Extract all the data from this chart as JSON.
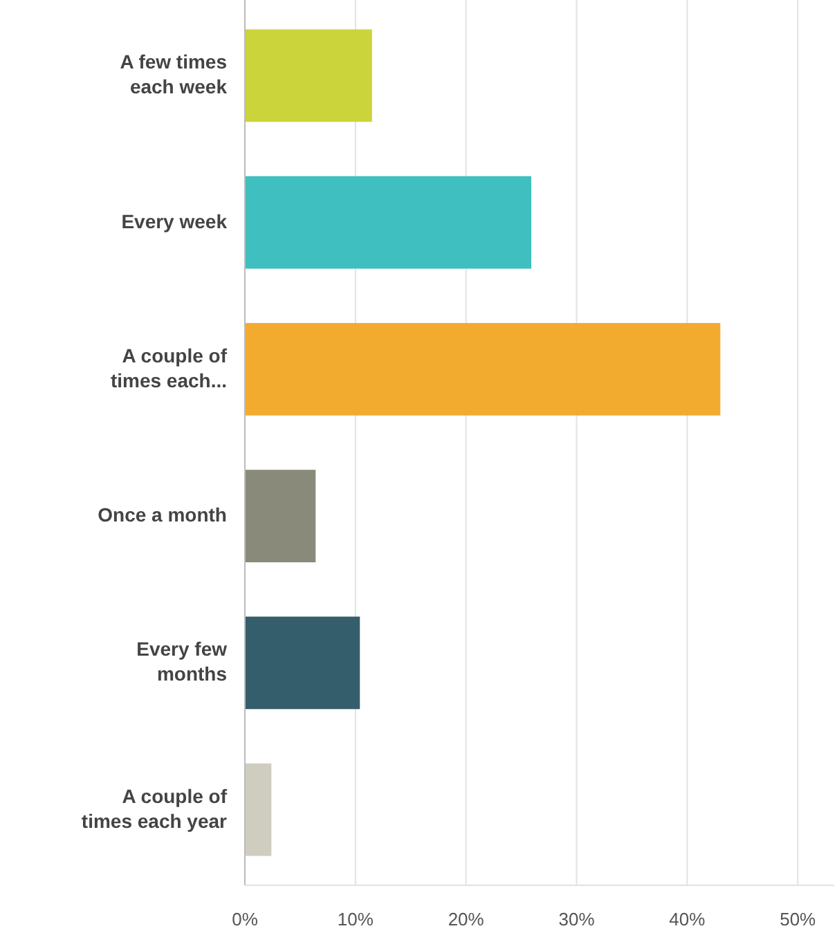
{
  "chart_data": {
    "type": "bar",
    "orientation": "horizontal",
    "categories": [
      "A few times each week",
      "Every week",
      "A couple of times each...",
      "Once a month",
      "Every few months",
      "A couple of times each year"
    ],
    "values": [
      11.5,
      25.9,
      43,
      6.4,
      10.4,
      2.4
    ],
    "colors": [
      "#ccd43c",
      "#3fbfbf",
      "#f3ab2f",
      "#8a8a7a",
      "#345e6b",
      "#cfcdbf"
    ],
    "xlim": [
      0,
      53.3
    ],
    "xticks": [
      {
        "value": 0,
        "label": "0%"
      },
      {
        "value": 10,
        "label": "10%"
      },
      {
        "value": 20,
        "label": "20%"
      },
      {
        "value": 30,
        "label": "30%"
      },
      {
        "value": 40,
        "label": "40%"
      },
      {
        "value": 50,
        "label": "50%"
      }
    ],
    "grid": "x"
  }
}
